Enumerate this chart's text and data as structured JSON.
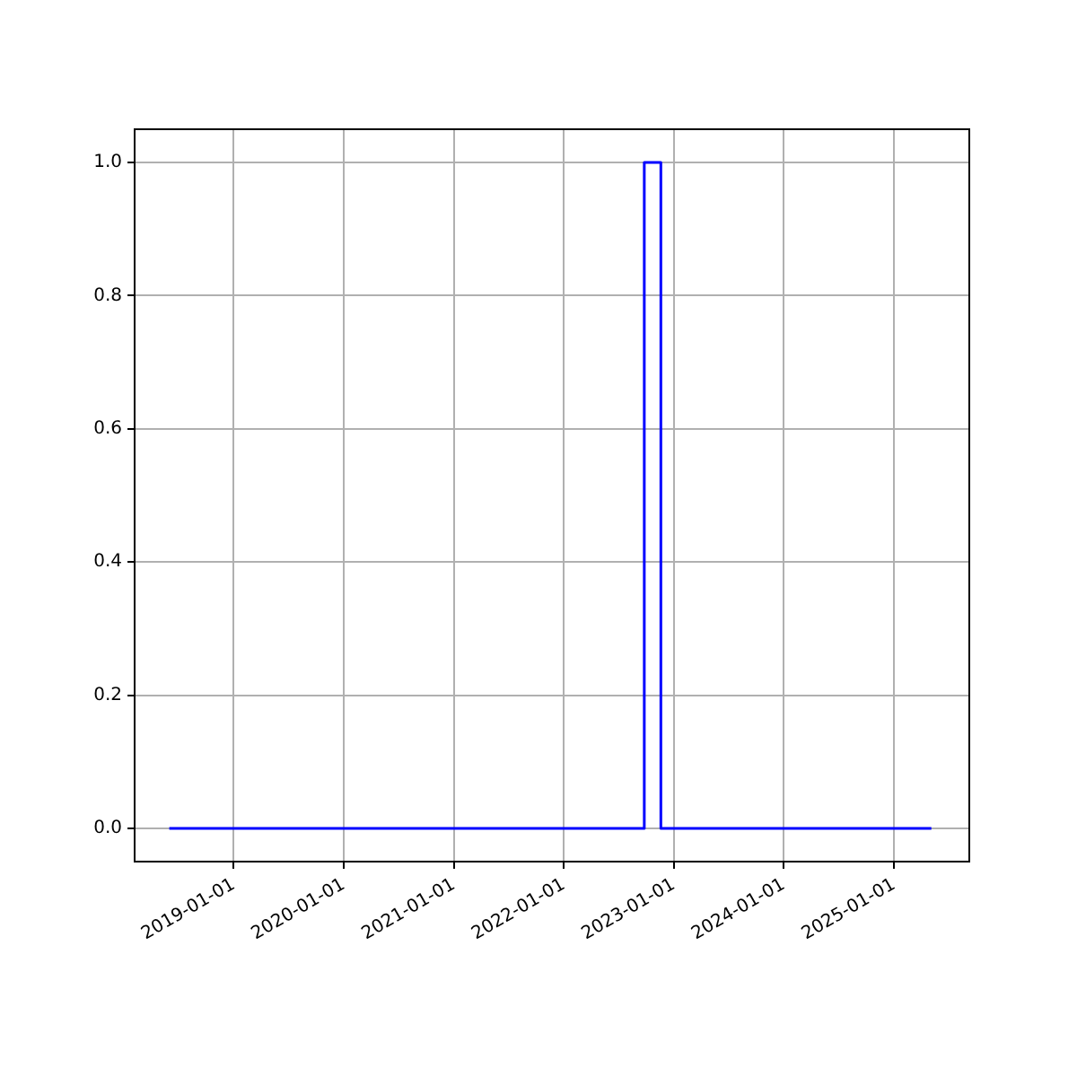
{
  "chart_data": {
    "type": "step",
    "x": [
      "2018-06-01",
      "2022-09-25",
      "2022-11-19",
      "2025-05-05"
    ],
    "series": [
      {
        "color": "#0000ff",
        "values": [
          0,
          1,
          0,
          0
        ]
      }
    ],
    "xlim": [
      "2018-02-06",
      "2025-09-08"
    ],
    "xticks": [
      "2019-01-01",
      "2020-01-01",
      "2021-01-01",
      "2022-01-01",
      "2023-01-01",
      "2024-01-01",
      "2025-01-01"
    ],
    "ylim": [
      -0.05,
      1.05
    ],
    "yticks": [
      {
        "value": 0,
        "label": "0.0"
      },
      {
        "value": 0.2,
        "label": "0.2"
      },
      {
        "value": 0.4,
        "label": "0.4"
      },
      {
        "value": 0.6,
        "label": "0.6"
      },
      {
        "value": 0.8,
        "label": "0.8"
      },
      {
        "value": 1,
        "label": "1.0"
      }
    ],
    "grid": true,
    "legend": false,
    "marker": "none",
    "line_style": "solid"
  }
}
